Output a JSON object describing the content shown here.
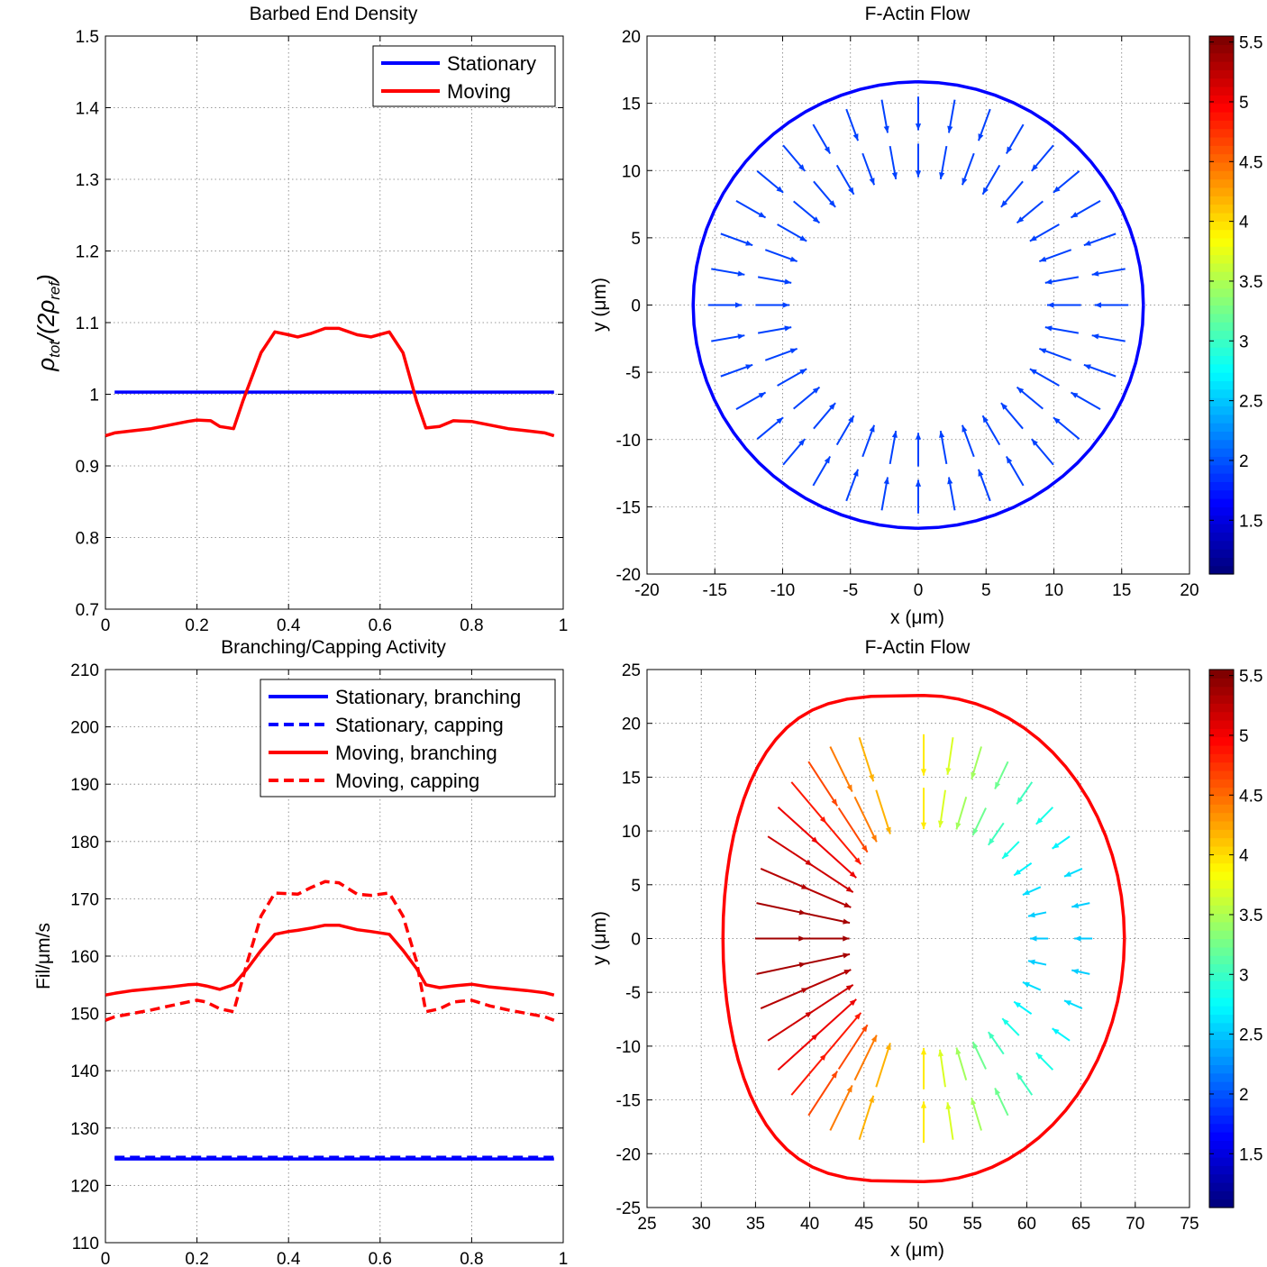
{
  "chart_data": [
    {
      "id": "barbed",
      "type": "line",
      "title": "Barbed End Density",
      "xlabel": "",
      "ylabel_main": "ρ",
      "ylabel_sub1": "tot",
      "ylabel_mid": "/(2ρ",
      "ylabel_sub2": "ref",
      "ylabel_end": ")",
      "xlim": [
        0,
        1
      ],
      "ylim": [
        0.7,
        1.5
      ],
      "xticks": [
        0,
        0.2,
        0.4,
        0.6,
        0.8,
        1
      ],
      "xtick_labels": [
        "0",
        "0.2",
        "0.4",
        "0.6",
        "0.8",
        "1"
      ],
      "yticks": [
        0.7,
        0.8,
        0.9,
        1.0,
        1.1,
        1.2,
        1.3,
        1.4,
        1.5
      ],
      "ytick_labels": [
        "0.7",
        "0.8",
        "0.9",
        "1",
        "1.1",
        "1.2",
        "1.3",
        "1.4",
        "1.5"
      ],
      "grid": true,
      "legend_position": "top-right",
      "series": [
        {
          "name": "Stationary",
          "color": "#0000ff",
          "dash": "solid",
          "x": [
            0.02,
            0.98
          ],
          "y": [
            1.003,
            1.003
          ]
        },
        {
          "name": "Moving",
          "color": "#ff0000",
          "dash": "solid",
          "x": [
            0.0,
            0.02,
            0.06,
            0.1,
            0.14,
            0.18,
            0.2,
            0.23,
            0.25,
            0.28,
            0.3,
            0.34,
            0.37,
            0.4,
            0.42,
            0.45,
            0.48,
            0.51,
            0.55,
            0.58,
            0.62,
            0.65,
            0.68,
            0.7,
            0.73,
            0.76,
            0.8,
            0.84,
            0.88,
            0.92,
            0.96,
            0.98
          ],
          "y": [
            0.942,
            0.946,
            0.949,
            0.952,
            0.957,
            0.962,
            0.964,
            0.963,
            0.955,
            0.952,
            0.99,
            1.058,
            1.087,
            1.083,
            1.08,
            1.085,
            1.092,
            1.092,
            1.083,
            1.08,
            1.087,
            1.058,
            0.99,
            0.953,
            0.955,
            0.963,
            0.962,
            0.957,
            0.952,
            0.949,
            0.946,
            0.942
          ]
        }
      ]
    },
    {
      "id": "branching",
      "type": "line",
      "title": "Branching/Capping Activity",
      "xlabel": "",
      "ylabel": "Fil/μm/s",
      "xlim": [
        0,
        1
      ],
      "ylim": [
        110,
        210
      ],
      "xticks": [
        0,
        0.2,
        0.4,
        0.6,
        0.8,
        1
      ],
      "xtick_labels": [
        "0",
        "0.2",
        "0.4",
        "0.6",
        "0.8",
        "1"
      ],
      "yticks": [
        110,
        120,
        130,
        140,
        150,
        160,
        170,
        180,
        190,
        200,
        210
      ],
      "ytick_labels": [
        "110",
        "120",
        "130",
        "140",
        "150",
        "160",
        "170",
        "180",
        "190",
        "200",
        "210"
      ],
      "grid": true,
      "legend_position": "top-right",
      "series": [
        {
          "name": "Stationary, branching",
          "color": "#0000ff",
          "dash": "solid",
          "x": [
            0.02,
            0.98
          ],
          "y": [
            124.6,
            124.6
          ]
        },
        {
          "name": "Stationary, capping",
          "color": "#0000ff",
          "dash": "dashed",
          "x": [
            0.02,
            0.98
          ],
          "y": [
            124.9,
            124.9
          ]
        },
        {
          "name": "Moving, branching",
          "color": "#ff0000",
          "dash": "solid",
          "x": [
            0.0,
            0.02,
            0.06,
            0.1,
            0.14,
            0.18,
            0.2,
            0.22,
            0.25,
            0.28,
            0.31,
            0.34,
            0.37,
            0.4,
            0.42,
            0.45,
            0.48,
            0.51,
            0.55,
            0.58,
            0.62,
            0.65,
            0.68,
            0.7,
            0.73,
            0.76,
            0.8,
            0.84,
            0.88,
            0.92,
            0.96,
            0.98
          ],
          "y": [
            153.2,
            153.5,
            154.0,
            154.3,
            154.6,
            155.0,
            155.1,
            154.8,
            154.2,
            155.0,
            157.8,
            161.0,
            163.8,
            164.3,
            164.5,
            164.9,
            165.4,
            165.4,
            164.6,
            164.3,
            163.8,
            161.0,
            157.8,
            155.0,
            154.5,
            154.8,
            155.1,
            154.6,
            154.3,
            154.0,
            153.6,
            153.2
          ]
        },
        {
          "name": "Moving, capping",
          "color": "#ff0000",
          "dash": "dashed",
          "x": [
            0.0,
            0.02,
            0.06,
            0.1,
            0.14,
            0.18,
            0.2,
            0.22,
            0.25,
            0.28,
            0.31,
            0.34,
            0.37,
            0.4,
            0.42,
            0.45,
            0.48,
            0.51,
            0.55,
            0.58,
            0.62,
            0.65,
            0.68,
            0.7,
            0.73,
            0.76,
            0.8,
            0.84,
            0.88,
            0.92,
            0.96,
            0.98
          ],
          "y": [
            148.8,
            149.4,
            150.0,
            150.6,
            151.3,
            152.0,
            152.3,
            152.0,
            150.8,
            150.3,
            159.0,
            167.0,
            171.0,
            170.9,
            170.8,
            172.0,
            173.0,
            172.8,
            170.8,
            170.6,
            171.0,
            167.0,
            159.0,
            150.3,
            150.8,
            152.0,
            152.3,
            151.3,
            150.6,
            150.0,
            149.4,
            148.8
          ]
        }
      ]
    },
    {
      "id": "flow-stationary",
      "type": "quiver",
      "title": "F-Actin Flow",
      "xlabel": "x (μm)",
      "ylabel": "y (μm)",
      "xlim": [
        -20,
        20
      ],
      "ylim": [
        -20,
        20
      ],
      "xticks": [
        -20,
        -15,
        -10,
        -5,
        0,
        5,
        10,
        15,
        20
      ],
      "xtick_labels": [
        "-20",
        "-15",
        "-10",
        "-5",
        "0",
        "5",
        "10",
        "15",
        "20"
      ],
      "yticks": [
        -20,
        -15,
        -10,
        -5,
        0,
        5,
        10,
        15,
        20
      ],
      "ytick_labels": [
        "-20",
        "-15",
        "-10",
        "-5",
        "0",
        "5",
        "10",
        "15",
        "20"
      ],
      "grid": true,
      "boundary": {
        "shape": "circle",
        "center": [
          0,
          0
        ],
        "radius": 16.6,
        "color": "#0000ff"
      },
      "arrows": {
        "angles_deg_step": 10,
        "rings": [
          {
            "radius": 15.5,
            "length": 2.5
          },
          {
            "radius": 12.0,
            "length": 2.5
          }
        ],
        "direction": "inward",
        "speed": 1.9
      },
      "colorbar": {
        "min": 1.05,
        "max": 5.55,
        "ticks": [
          1.5,
          2,
          2.5,
          3,
          3.5,
          4,
          4.5,
          5,
          5.5
        ],
        "tick_labels": [
          "1.5",
          "2",
          "2.5",
          "3",
          "3.5",
          "4",
          "4.5",
          "5",
          "5.5"
        ],
        "colormap": "jet"
      }
    },
    {
      "id": "flow-moving",
      "type": "quiver",
      "title": "F-Actin Flow",
      "xlabel": "x (μm)",
      "ylabel": "y (μm)",
      "xlim": [
        25,
        75
      ],
      "ylim": [
        -25,
        25
      ],
      "xticks": [
        25,
        30,
        35,
        40,
        45,
        50,
        55,
        60,
        65,
        70,
        75
      ],
      "xtick_labels": [
        "25",
        "30",
        "35",
        "40",
        "45",
        "50",
        "55",
        "60",
        "65",
        "70",
        "75"
      ],
      "yticks": [
        -25,
        -20,
        -15,
        -10,
        -5,
        0,
        5,
        10,
        15,
        20,
        25
      ],
      "ytick_labels": [
        "-25",
        "-20",
        "-15",
        "-10",
        "-5",
        "0",
        "5",
        "10",
        "15",
        "20",
        "25"
      ],
      "grid": true,
      "boundary": {
        "shape": "ellipse",
        "center": [
          50.5,
          0
        ],
        "rx_left": 18.5,
        "rx_right": 18.5,
        "ry": 22.6,
        "color": "#ff0000"
      },
      "arrows": {
        "angles_deg_step": 10,
        "rings": [
          {
            "fraction": 0.84
          },
          {
            "fraction": 0.62
          }
        ],
        "direction": "inward",
        "speed_left": 5.4,
        "speed_right": 2.5
      },
      "colorbar": {
        "min": 1.05,
        "max": 5.55,
        "ticks": [
          1.5,
          2,
          2.5,
          3,
          3.5,
          4,
          4.5,
          5,
          5.5
        ],
        "tick_labels": [
          "1.5",
          "2",
          "2.5",
          "3",
          "3.5",
          "4",
          "4.5",
          "5",
          "5.5"
        ],
        "colormap": "jet"
      }
    }
  ]
}
